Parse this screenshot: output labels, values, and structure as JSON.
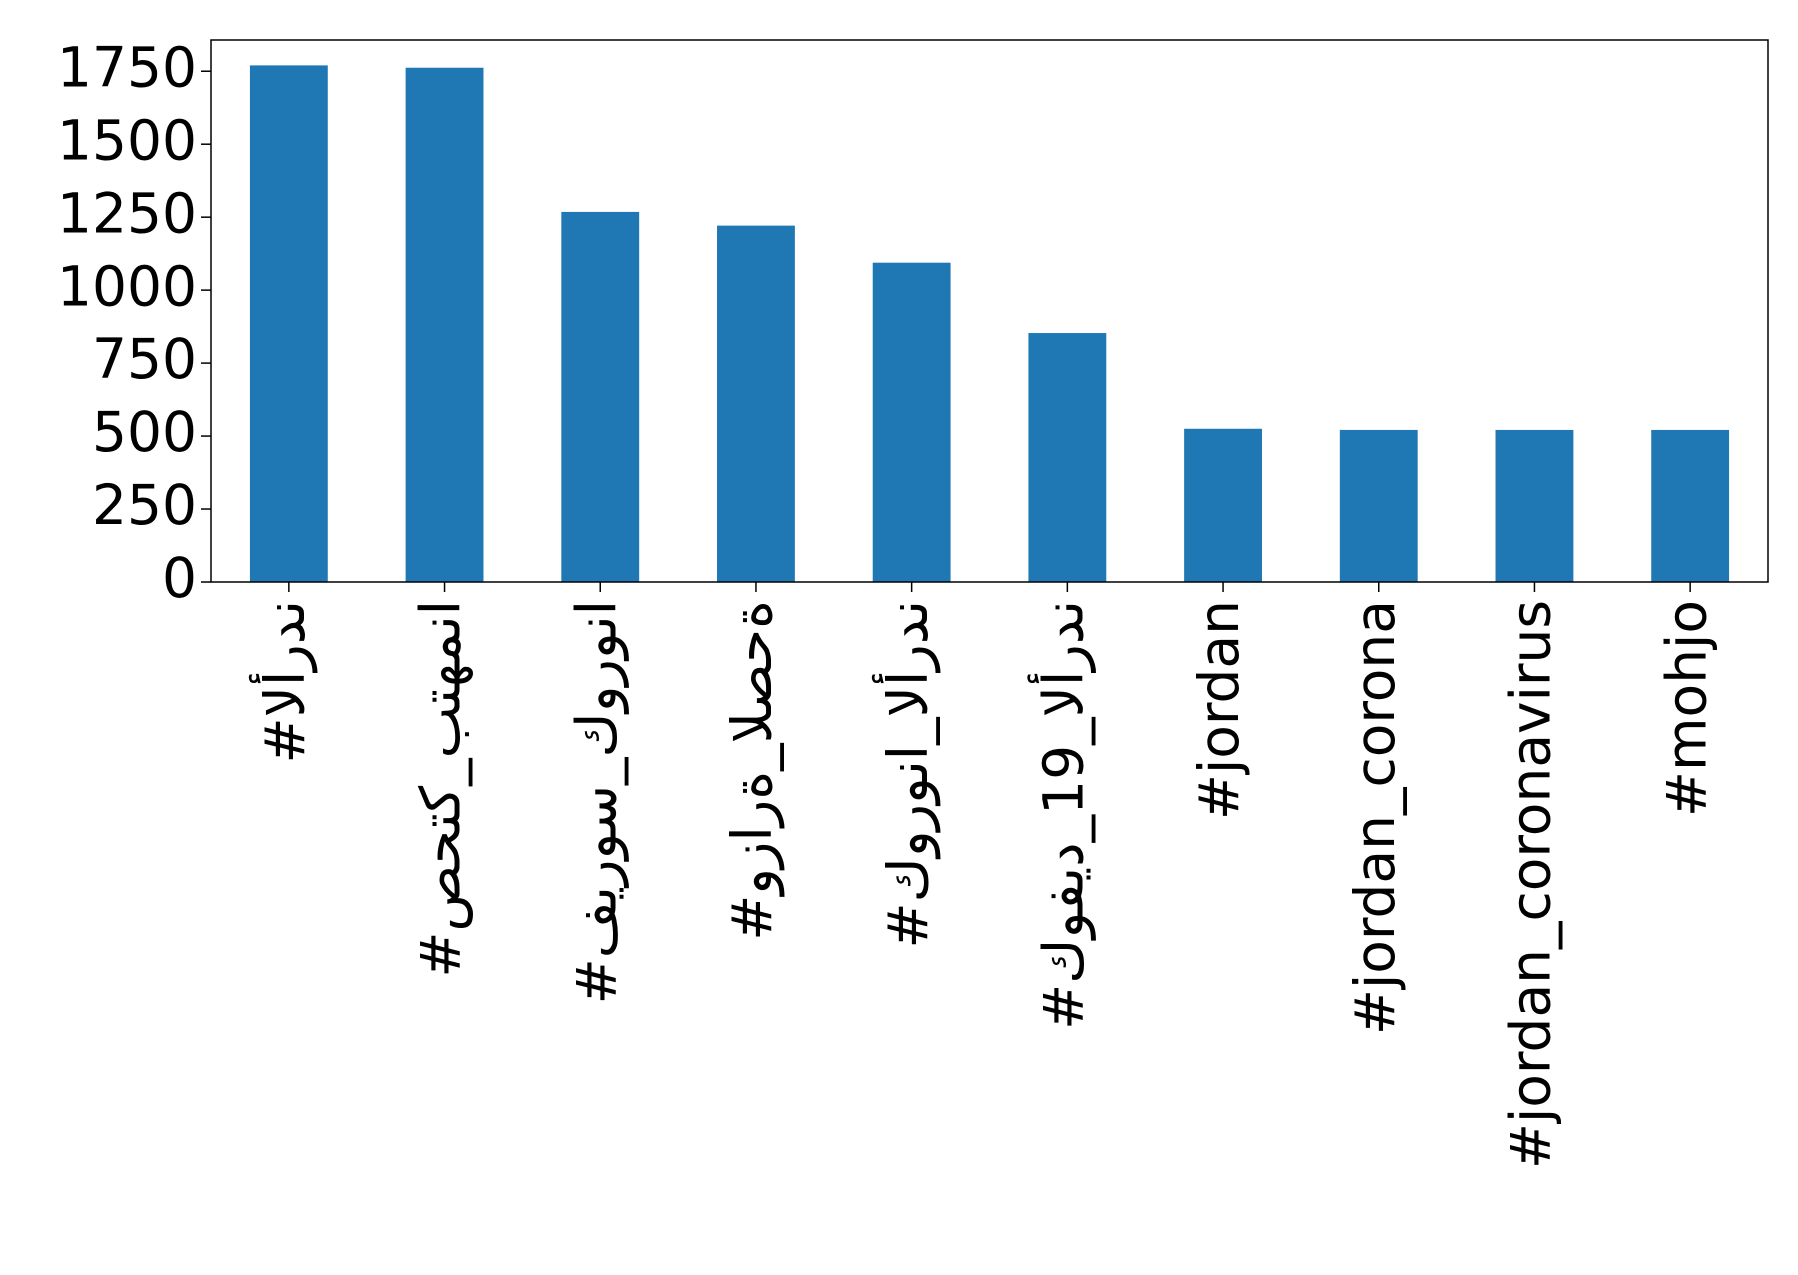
{
  "chart_data": {
    "type": "bar",
    "categories": [
      "#الأردن",
      "#صحتك_بتهمنا",
      "#فيروس_كورونا",
      "#وزارة_الصحة",
      "#كورونا_الأردن",
      "#كوفيد_19_الأردن",
      "#jordan",
      "#jordan_corona",
      "#jordan_coronavirus",
      "#mohjo"
    ],
    "values": [
      1770,
      1762,
      1268,
      1221,
      1094,
      853,
      525,
      521,
      521,
      521
    ],
    "color": "#1f77b4",
    "ylim": [
      0,
      1857
    ],
    "yticks": [
      0,
      250,
      500,
      750,
      1000,
      1250,
      1500,
      1750
    ],
    "grid": false
  }
}
